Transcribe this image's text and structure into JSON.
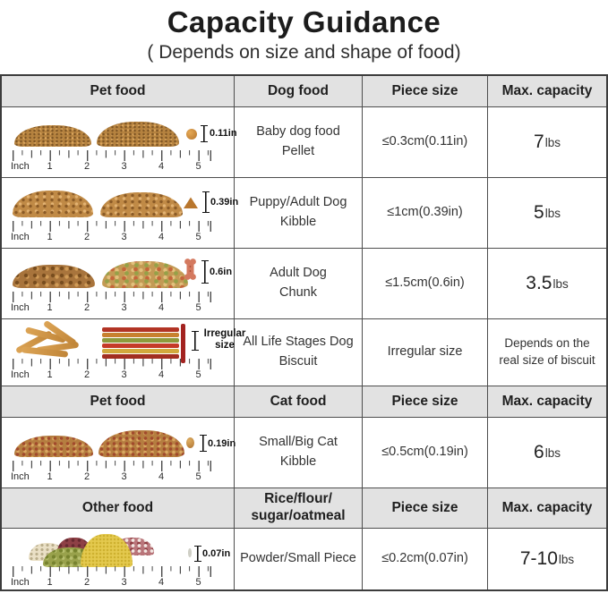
{
  "title": "Capacity Guidance",
  "subtitle": "( Depends on size and shape of food)",
  "colors": {
    "header_bg": "#e2e2e2",
    "border": "#4e4e4e",
    "biscuit_stick_red": "#a32320"
  },
  "ruler": {
    "unit_label": "Inch",
    "ticks": [
      "1",
      "2",
      "3",
      "4",
      "5"
    ]
  },
  "sections": [
    {
      "header": {
        "pet": "Pet food",
        "food_type": "Dog food",
        "piece_size": "Piece size",
        "max_capacity": "Max. capacity"
      },
      "rows": [
        {
          "name_lines": [
            "Baby dog food",
            "Pellet"
          ],
          "measure_label": "0.11in",
          "piece_size": "≤0.3cm(0.11in)",
          "capacity_value": "7",
          "capacity_unit": "lbs"
        },
        {
          "name_lines": [
            "Puppy/Adult Dog",
            "Kibble"
          ],
          "measure_label": "0.39in",
          "piece_size": "≤1cm(0.39in)",
          "capacity_value": "5",
          "capacity_unit": "lbs"
        },
        {
          "name_lines": [
            "Adult Dog",
            "Chunk"
          ],
          "measure_label": "0.6in",
          "piece_size": "≤1.5cm(0.6in)",
          "capacity_value": "3.5",
          "capacity_unit": "lbs"
        },
        {
          "name_lines": [
            "All Life Stages Dog",
            "Biscuit"
          ],
          "measure_label": "Irregular size",
          "piece_size": "Irregular size",
          "capacity_note": "Depends on the real size of biscuit"
        }
      ]
    },
    {
      "header": {
        "pet": "Pet food",
        "food_type": "Cat food",
        "piece_size": "Piece size",
        "max_capacity": "Max. capacity"
      },
      "rows": [
        {
          "name_lines": [
            "Small/Big Cat",
            "Kibble"
          ],
          "measure_label": "0.19in",
          "piece_size": "≤0.5cm(0.19in)",
          "capacity_value": "6",
          "capacity_unit": "lbs"
        }
      ]
    },
    {
      "header": {
        "pet": "Other food",
        "food_type_lines": [
          "Rice/flour/",
          "sugar/oatmeal"
        ],
        "piece_size": "Piece size",
        "max_capacity": "Max. capacity"
      },
      "rows": [
        {
          "name_lines": [
            "Powder/Small Piece"
          ],
          "measure_label": "0.07in",
          "piece_size": "≤0.2cm(0.07in)",
          "capacity_value": "7-10",
          "capacity_unit": "lbs"
        }
      ]
    }
  ]
}
